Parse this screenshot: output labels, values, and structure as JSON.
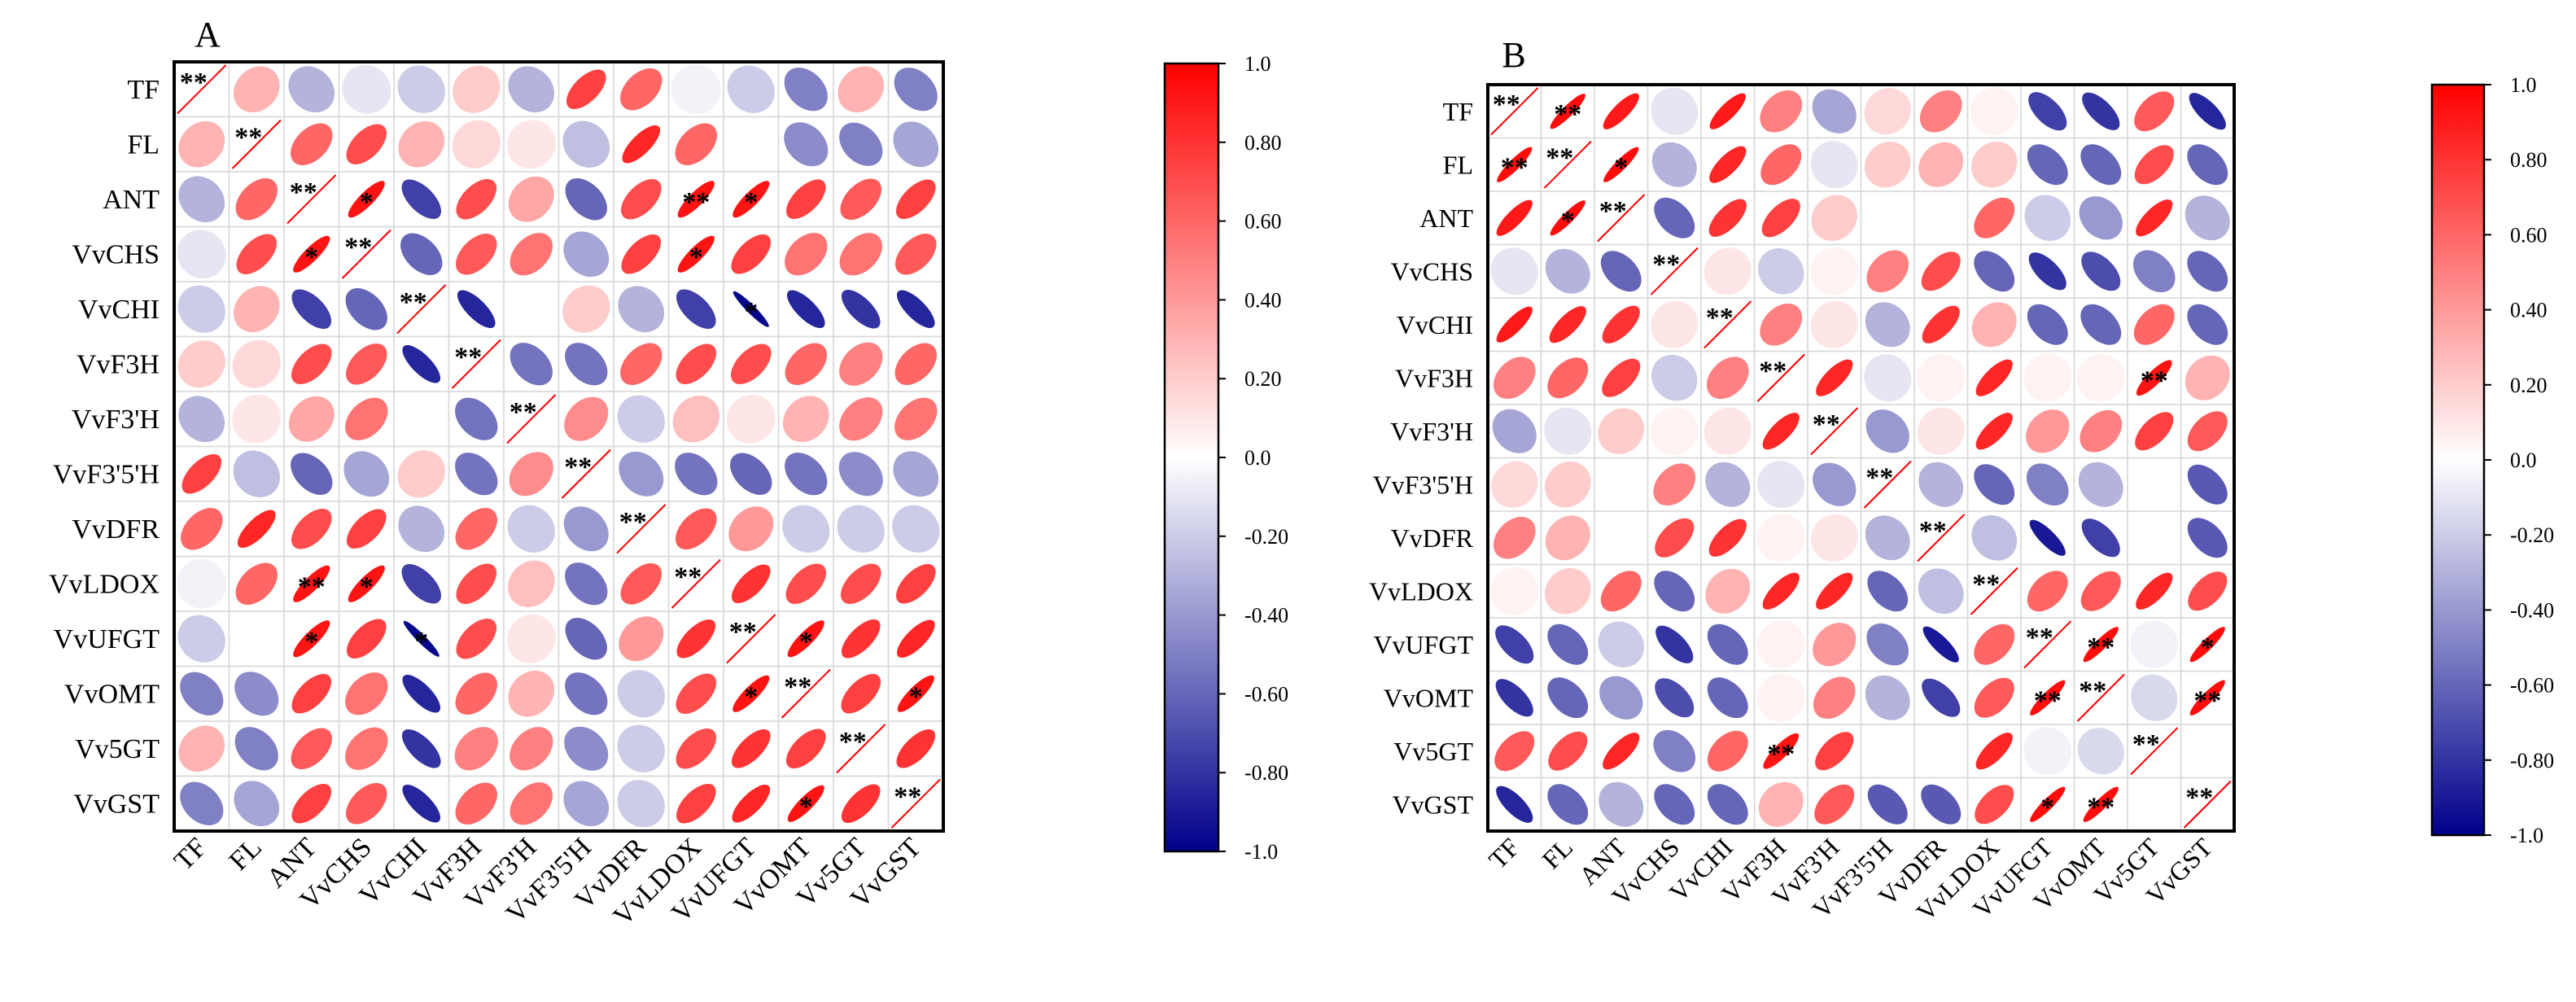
{
  "chart_data": [
    {
      "panel_label": "A",
      "type": "correlation_matrix",
      "variables": [
        "TF",
        "FL",
        "ANT",
        "VvCHS",
        "VvCHI",
        "VvF3H",
        "VvF3'H",
        "VvF3'5'H",
        "VvDFR",
        "VvLDOX",
        "VvUFGT",
        "VvOMT",
        "Vv5GT",
        "VvGST"
      ],
      "diagonal_label": "**",
      "matrix": [
        [
          1.0,
          0.3,
          -0.3,
          -0.1,
          -0.2,
          0.2,
          -0.3,
          0.75,
          0.6,
          -0.05,
          -0.2,
          -0.5,
          0.3,
          -0.5
        ],
        [
          0.3,
          1.0,
          0.6,
          0.7,
          0.3,
          0.15,
          0.1,
          -0.25,
          0.85,
          0.6,
          0.0,
          -0.45,
          -0.5,
          -0.35
        ],
        [
          -0.3,
          0.6,
          1.0,
          0.92,
          -0.75,
          0.7,
          0.35,
          -0.6,
          0.7,
          0.92,
          0.92,
          0.75,
          0.65,
          0.75
        ],
        [
          -0.1,
          0.7,
          0.92,
          1.0,
          -0.6,
          0.65,
          0.55,
          -0.35,
          0.75,
          0.92,
          0.75,
          0.55,
          0.55,
          0.65
        ],
        [
          -0.2,
          0.3,
          -0.75,
          -0.6,
          1.0,
          -0.85,
          0.0,
          0.2,
          -0.3,
          -0.75,
          -0.97,
          -0.85,
          -0.8,
          -0.85
        ],
        [
          0.2,
          0.15,
          0.7,
          0.65,
          -0.85,
          1.0,
          -0.55,
          -0.55,
          0.6,
          0.7,
          0.7,
          0.6,
          0.5,
          0.6
        ],
        [
          -0.3,
          0.1,
          0.35,
          0.55,
          0.0,
          -0.55,
          1.0,
          0.45,
          -0.2,
          0.25,
          0.1,
          0.3,
          0.5,
          0.55
        ],
        [
          0.75,
          -0.25,
          -0.6,
          -0.35,
          0.2,
          -0.55,
          0.45,
          1.0,
          -0.4,
          -0.55,
          -0.6,
          -0.55,
          -0.45,
          -0.35
        ],
        [
          0.6,
          0.85,
          0.7,
          0.75,
          -0.3,
          0.6,
          -0.2,
          -0.4,
          1.0,
          0.65,
          0.4,
          -0.2,
          -0.2,
          -0.2
        ],
        [
          -0.05,
          0.6,
          0.92,
          0.92,
          -0.75,
          0.7,
          0.25,
          -0.55,
          0.65,
          1.0,
          0.8,
          0.7,
          0.7,
          0.75
        ],
        [
          -0.2,
          0.0,
          0.92,
          0.75,
          -0.97,
          0.7,
          0.1,
          -0.6,
          0.4,
          0.8,
          1.0,
          0.92,
          0.8,
          0.85
        ],
        [
          -0.5,
          -0.45,
          0.75,
          0.55,
          -0.85,
          0.6,
          0.3,
          -0.55,
          -0.2,
          0.7,
          0.92,
          1.0,
          0.75,
          0.92
        ],
        [
          0.3,
          -0.5,
          0.65,
          0.55,
          -0.8,
          0.5,
          0.5,
          -0.45,
          -0.2,
          0.7,
          0.8,
          0.75,
          1.0,
          0.8
        ],
        [
          -0.5,
          -0.35,
          0.75,
          0.65,
          -0.85,
          0.6,
          0.55,
          -0.35,
          -0.2,
          0.75,
          0.85,
          0.92,
          0.8,
          1.0
        ]
      ],
      "significance": [
        {
          "row": "ANT",
          "col": "VvCHS",
          "label": "*"
        },
        {
          "row": "ANT",
          "col": "VvLDOX",
          "label": "**"
        },
        {
          "row": "ANT",
          "col": "VvUFGT",
          "label": "*"
        },
        {
          "row": "VvCHS",
          "col": "ANT",
          "label": "*"
        },
        {
          "row": "VvCHS",
          "col": "VvLDOX",
          "label": "*"
        },
        {
          "row": "VvCHI",
          "col": "VvUFGT",
          "label": "*"
        },
        {
          "row": "VvLDOX",
          "col": "ANT",
          "label": "**"
        },
        {
          "row": "VvLDOX",
          "col": "VvCHS",
          "label": "*"
        },
        {
          "row": "VvUFGT",
          "col": "ANT",
          "label": "*"
        },
        {
          "row": "VvUFGT",
          "col": "VvCHI",
          "label": "*"
        },
        {
          "row": "VvUFGT",
          "col": "VvOMT",
          "label": "*"
        },
        {
          "row": "VvOMT",
          "col": "VvUFGT",
          "label": "*"
        },
        {
          "row": "VvOMT",
          "col": "VvGST",
          "label": "*"
        },
        {
          "row": "VvGST",
          "col": "VvOMT",
          "label": "*"
        }
      ],
      "colorbar": {
        "min": -1.0,
        "max": 1.0,
        "ticks": [
          1.0,
          0.8,
          0.6,
          0.4,
          0.2,
          0.0,
          -0.2,
          -0.4,
          -0.6,
          -0.8,
          -1.0
        ],
        "tick_labels": [
          "1.0",
          "0.80",
          "0.60",
          "0.40",
          "0.20",
          "0.0",
          "-0.20",
          "-0.40",
          "-0.60",
          "-0.80",
          "-1.0"
        ]
      }
    },
    {
      "panel_label": "B",
      "type": "correlation_matrix",
      "variables": [
        "TF",
        "FL",
        "ANT",
        "VvCHS",
        "VvCHI",
        "VvF3H",
        "VvF3'H",
        "VvF3'5'H",
        "VvDFR",
        "VvLDOX",
        "VvUFGT",
        "VvOMT",
        "Vv5GT",
        "VvGST"
      ],
      "diagonal_label": "**",
      "matrix": [
        [
          1.0,
          0.95,
          0.9,
          -0.1,
          0.9,
          0.5,
          -0.35,
          0.15,
          0.5,
          0.05,
          -0.75,
          -0.8,
          0.65,
          -0.85
        ],
        [
          0.95,
          1.0,
          0.95,
          -0.3,
          0.85,
          0.6,
          -0.1,
          0.2,
          0.3,
          0.2,
          -0.6,
          -0.6,
          0.7,
          -0.6
        ],
        [
          0.9,
          0.95,
          1.0,
          -0.6,
          0.8,
          0.75,
          0.2,
          0.0,
          0.0,
          0.6,
          -0.2,
          -0.4,
          0.85,
          -0.3
        ],
        [
          -0.1,
          -0.3,
          -0.6,
          1.0,
          0.1,
          -0.2,
          0.05,
          0.5,
          0.7,
          -0.6,
          -0.8,
          -0.7,
          -0.5,
          -0.6
        ],
        [
          0.9,
          0.85,
          0.8,
          0.1,
          1.0,
          0.5,
          0.1,
          -0.3,
          0.8,
          0.3,
          -0.6,
          -0.6,
          0.6,
          -0.6
        ],
        [
          0.5,
          0.6,
          0.75,
          -0.2,
          0.5,
          1.0,
          0.85,
          -0.1,
          0.05,
          0.85,
          0.05,
          0.05,
          0.92,
          0.3
        ],
        [
          -0.35,
          -0.1,
          0.2,
          0.05,
          0.1,
          0.85,
          1.0,
          -0.4,
          0.1,
          0.85,
          0.4,
          0.5,
          0.75,
          0.65
        ],
        [
          0.15,
          0.2,
          0.0,
          0.5,
          -0.3,
          -0.1,
          -0.4,
          1.0,
          -0.3,
          -0.6,
          -0.5,
          -0.3,
          0.0,
          -0.65
        ],
        [
          0.5,
          0.3,
          0.0,
          0.7,
          0.8,
          0.05,
          0.1,
          -0.3,
          1.0,
          -0.25,
          -0.9,
          -0.75,
          0.0,
          -0.65
        ],
        [
          0.05,
          0.2,
          0.6,
          -0.6,
          0.3,
          0.85,
          0.85,
          -0.6,
          -0.25,
          1.0,
          0.6,
          0.65,
          0.85,
          0.7
        ],
        [
          -0.75,
          -0.6,
          -0.2,
          -0.8,
          -0.6,
          0.05,
          0.4,
          -0.5,
          -0.9,
          0.6,
          1.0,
          0.95,
          -0.05,
          0.95
        ],
        [
          -0.8,
          -0.6,
          -0.4,
          -0.7,
          -0.6,
          0.05,
          0.5,
          -0.3,
          -0.75,
          0.65,
          0.95,
          1.0,
          -0.15,
          0.95
        ],
        [
          0.65,
          0.7,
          0.85,
          -0.5,
          0.6,
          0.92,
          0.75,
          0.0,
          0.0,
          0.85,
          -0.05,
          -0.15,
          1.0,
          0.0
        ],
        [
          -0.85,
          -0.6,
          -0.3,
          -0.6,
          -0.6,
          0.3,
          0.65,
          -0.65,
          -0.65,
          0.7,
          0.95,
          0.95,
          0.0,
          1.0
        ]
      ],
      "significance": [
        {
          "row": "TF",
          "col": "FL",
          "label": "**"
        },
        {
          "row": "FL",
          "col": "TF",
          "label": "**"
        },
        {
          "row": "FL",
          "col": "ANT",
          "label": "*"
        },
        {
          "row": "ANT",
          "col": "FL",
          "label": "*"
        },
        {
          "row": "VvF3H",
          "col": "Vv5GT",
          "label": "**"
        },
        {
          "row": "VvUFGT",
          "col": "VvOMT",
          "label": "**"
        },
        {
          "row": "VvUFGT",
          "col": "VvGST",
          "label": "*"
        },
        {
          "row": "VvOMT",
          "col": "VvUFGT",
          "label": "**"
        },
        {
          "row": "VvOMT",
          "col": "VvGST",
          "label": "**"
        },
        {
          "row": "Vv5GT",
          "col": "VvF3H",
          "label": "**"
        },
        {
          "row": "VvGST",
          "col": "VvUFGT",
          "label": "*"
        },
        {
          "row": "VvGST",
          "col": "VvOMT",
          "label": "**"
        }
      ],
      "colorbar": {
        "min": -1.0,
        "max": 1.0,
        "ticks": [
          1.0,
          0.8,
          0.6,
          0.4,
          0.2,
          0.0,
          -0.2,
          -0.4,
          -0.6,
          -0.8,
          -1.0
        ],
        "tick_labels": [
          "1.0",
          "0.80",
          "0.60",
          "0.40",
          "0.20",
          "0.0",
          "-0.20",
          "-0.40",
          "-0.60",
          "-0.80",
          "-1.0"
        ]
      }
    }
  ]
}
